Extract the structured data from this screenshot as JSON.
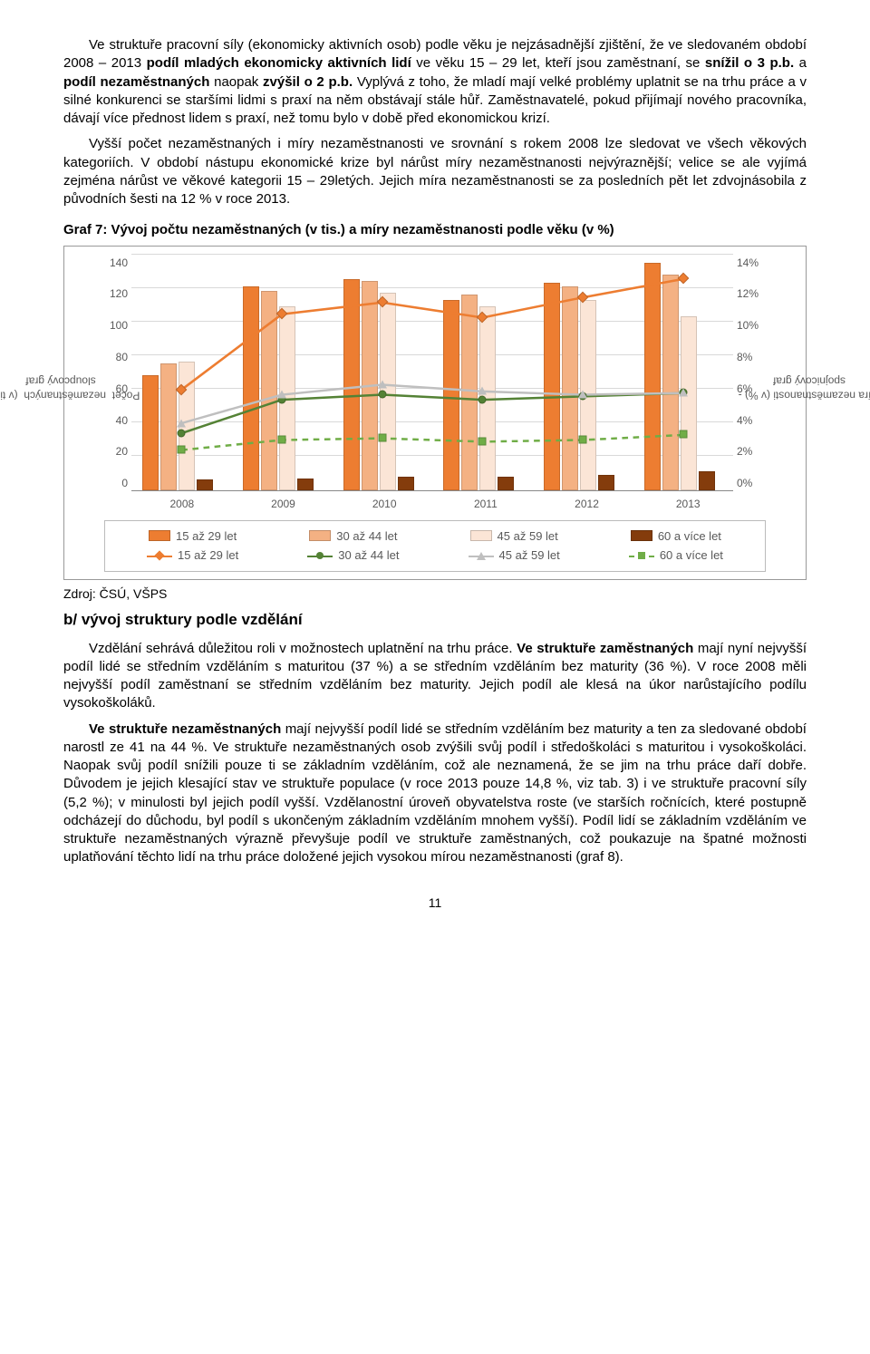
{
  "paragraphs": {
    "p1_a": "Ve struktuře pracovní síly (ekonomicky aktivních osob) podle věku je nejzásadnější zjištění, že ve sledovaném období 2008 – 2013 ",
    "p1_b": "podíl mladých ekonomicky aktivních lidí",
    "p1_c": " ve věku 15 – 29 let, kteří jsou zaměstnaní, se ",
    "p1_d": "snížil o 3 p.b.",
    "p1_e": " a ",
    "p1_f": "podíl nezaměstnaných",
    "p1_g": " naopak ",
    "p1_h": "zvýšil o 2 p.b.",
    "p1_i": " Vyplývá z toho, že mladí mají velké problémy uplatnit se na trhu práce a v silné konkurenci se staršími lidmi s praxí na něm obstávají stále hůř. Zaměstnavatelé, pokud přijímají nového pracovníka, dávají více přednost lidem s praxí, než tomu bylo v době před ekonomickou krizí.",
    "p2": "Vyšší počet nezaměstnaných i míry nezaměstnanosti ve srovnání s rokem 2008 lze sledovat ve všech věkových kategoriích. V období nástupu ekonomické krize byl nárůst míry nezaměstnanosti nejvýraznější; velice se ale vyjímá zejména nárůst ve věkové kategorii 15 – 29letých. Jejich míra nezaměstnanosti se za posledních pět let zdvojnásobila z původních šesti na 12 % v roce 2013.",
    "chart_title": "Graf 7: Vývoj počtu nezaměstnaných (v tis.) a míry nezaměstnanosti podle věku (v %)",
    "source": "Zdroj: ČSÚ, VŠPS",
    "section_b": "b/ vývoj struktury podle vzdělání",
    "p3_a": "Vzdělání sehrává důležitou roli v možnostech uplatnění na trhu práce. ",
    "p3_b": "Ve struktuře zaměstnaných",
    "p3_c": " mají nyní nejvyšší podíl lidé se středním vzděláním s maturitou (37 %) a se středním vzděláním bez maturity (36 %). V roce 2008 měli nejvyšší podíl zaměstnaní se středním vzděláním bez maturity. Jejich podíl ale klesá na úkor narůstajícího podílu vysokoškoláků.",
    "p4_a": "Ve struktuře nezaměstnaných",
    "p4_b": " mají nejvyšší podíl lidé se středním vzděláním bez maturity a ten za sledované období narostl ze 41 na 44 %. Ve struktuře nezaměstnaných osob zvýšili svůj podíl i středoškoláci s maturitou i vysokoškoláci. Naopak svůj podíl snížili pouze ti se základním vzděláním, což ale neznamená, že se jim na trhu práce daří dobře. Důvodem je jejich klesající stav ve struktuře populace (v roce 2013 pouze 14,8 %, viz tab. 3) i ve struktuře pracovní síly (5,2 %); v minulosti byl jejich podíl vyšší. Vzdělanostní úroveň obyvatelstva roste (ve starších ročnících, které postupně odcházejí do důchodu, byl podíl s ukončeným základním vzděláním mnohem vyšší). Podíl lidí se základním vzděláním ve struktuře nezaměstnaných výrazně převyšuje podíl ve struktuře zaměstnaných, což poukazuje na špatné možnosti uplatňování těchto lidí na trhu práce doložené jejich vysokou mírou nezaměstnanosti (graf 8).",
    "page_number": "11"
  },
  "chart": {
    "type": "bar+line",
    "y_left_label": "Počet  nezaměstnaných  (v tis.) -\nsloupcový graf",
    "y_right_label": "Míra nezaměstnanosti (v %) -\nspojnicový graf",
    "y_left_max": 140,
    "y_left_step": 20,
    "y_right_max": 14,
    "y_right_step": 2,
    "years": [
      "2008",
      "2009",
      "2010",
      "2011",
      "2012",
      "2013"
    ],
    "categories": [
      "15 až 29 let",
      "30 až 44 let",
      "45 až 59 let",
      "60 a více let"
    ],
    "bar_colors": [
      "#ed7d31",
      "#f4b183",
      "#fbe5d6",
      "#843c0c"
    ],
    "line_colors": [
      "#ed7d31",
      "#548235",
      "#bfbfbf",
      "#70ad47"
    ],
    "line_styles": [
      "solid",
      "solid",
      "solid",
      "dashed"
    ],
    "marker_shapes": [
      "diamond",
      "circle",
      "triangle",
      "square"
    ],
    "bars": {
      "2008": [
        68,
        75,
        76,
        6
      ],
      "2009": [
        121,
        118,
        109,
        7
      ],
      "2010": [
        125,
        124,
        117,
        8
      ],
      "2011": [
        113,
        116,
        109,
        8
      ],
      "2012": [
        123,
        121,
        113,
        9
      ],
      "2013": [
        135,
        128,
        103,
        11
      ]
    },
    "lines": {
      "15 až 29 let": [
        6.0,
        10.5,
        11.2,
        10.3,
        11.5,
        12.6
      ],
      "30 až 44 let": [
        3.4,
        5.4,
        5.7,
        5.4,
        5.6,
        5.8
      ],
      "45 až 59 let": [
        4.0,
        5.7,
        6.3,
        5.9,
        5.7,
        5.8
      ],
      "60 a více let": [
        2.4,
        3.0,
        3.1,
        2.9,
        3.0,
        3.3
      ]
    },
    "grid_color": "#d9d9d9",
    "axis_font_color": "#595959",
    "background": "#ffffff"
  }
}
